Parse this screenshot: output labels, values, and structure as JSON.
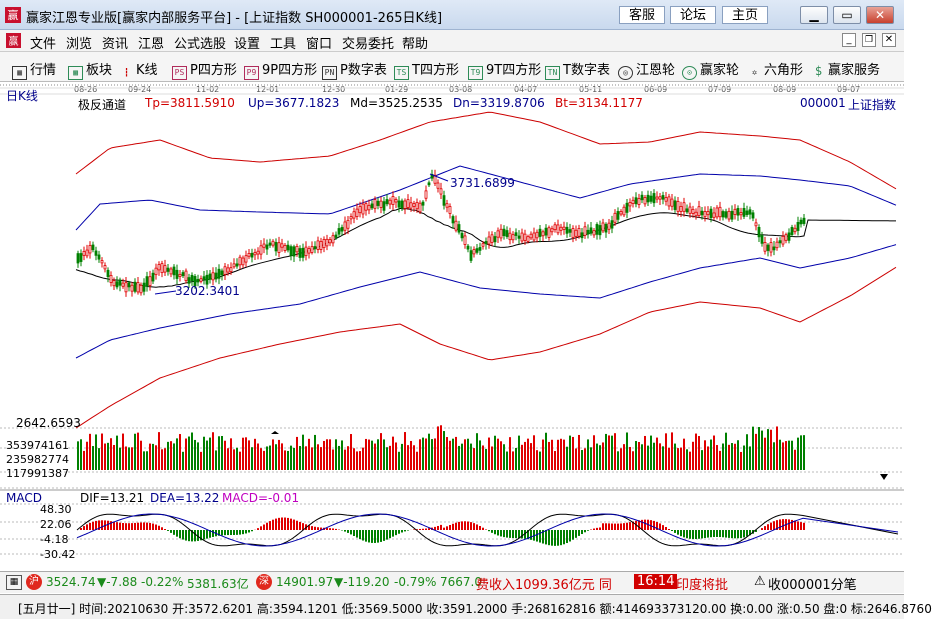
{
  "window": {
    "title": "赢家江恩专业版[赢家内部服务平台] - [上证指数  SH000001-265日K线]",
    "buttons": [
      "客服",
      "论坛",
      "主页"
    ],
    "controls": [
      "minimize",
      "restore",
      "close"
    ]
  },
  "menu": [
    "文件",
    "浏览",
    "资讯",
    "江恩",
    "公式选股",
    "设置",
    "工具",
    "窗口",
    "交易委托",
    "帮助"
  ],
  "toolbar": [
    {
      "label": "行情",
      "icon": "grid-icon"
    },
    {
      "label": "板块",
      "icon": "blocks-icon"
    },
    {
      "label": "K线",
      "icon": "candle-icon"
    },
    {
      "label": "P四方形",
      "icon": "p-square-icon",
      "tag": "PS"
    },
    {
      "label": "9P四方形",
      "icon": "9p-square-icon",
      "tag": "P9"
    },
    {
      "label": "P数字表",
      "icon": "p-table-icon",
      "tag": "PN"
    },
    {
      "label": "T四方形",
      "icon": "t-square-icon",
      "tag": "TS"
    },
    {
      "label": "9T四方形",
      "icon": "9t-square-icon",
      "tag": "T9"
    },
    {
      "label": "T数字表",
      "icon": "t-table-icon",
      "tag": "TN"
    },
    {
      "label": "江恩轮",
      "icon": "gann-wheel-icon"
    },
    {
      "label": "赢家轮",
      "icon": "winner-wheel-icon"
    },
    {
      "label": "六角形",
      "icon": "hexagon-icon"
    },
    {
      "label": "赢家服务",
      "icon": "dollar-icon"
    }
  ],
  "chart": {
    "period_label": "日K线",
    "dates": [
      "08-26",
      "09-24",
      "11-02",
      "12-01",
      "12-30",
      "01-29",
      "03-08",
      "04-07",
      "05-11",
      "06-09",
      "07-09",
      "08-09",
      "09-07"
    ],
    "indicator_name": "极反通道",
    "tp": "Tp=3811.5910",
    "up": "Up=3677.1823",
    "md": "Md=3525.2535",
    "dn": "Dn=3319.8706",
    "bt": "Bt=3134.1177",
    "code": "000001",
    "name": "上证指数",
    "high_mark": "3731.6899",
    "low_mark": "3202.3401",
    "bottom_price": "2642.6593",
    "volume_labels": [
      "353974161",
      "235982774",
      "117991387"
    ],
    "macd_label": "MACD",
    "dif": "DIF=13.21",
    "dea": "DEA=13.22",
    "macd": "MACD=-0.01",
    "macd_ticks": [
      "48.30",
      "22.06",
      "-4.18",
      "-30.42"
    ],
    "colors": {
      "up": "#e00000",
      "down": "#008000",
      "upper_channel": "#cc0000",
      "mid_channel": "#0000aa",
      "mid_line": "#000000",
      "macd_text": "#c000c0"
    }
  },
  "status1": {
    "sh_value": "3524.74",
    "sh_change": "▼-7.88",
    "sh_pct": "-0.22%",
    "sh_amount": "5381.63亿",
    "sz_value": "14901.97",
    "sz_change": "▼-119.20",
    "sz_pct": "-0.79%",
    "sz_amount": "7667.0",
    "news": "费收入1099.36亿元 同",
    "time": "16:14",
    "ticker": "印度将批",
    "close_label": "收000001分笔"
  },
  "status2": "[五月廿一] 时间:20210630 开:3572.6201 高:3594.1201 低:3569.5000 收:3591.2000 手:268162816 额:414693373120.00 换:0.00 涨:0.50 盘:0 标:2646.8760"
}
